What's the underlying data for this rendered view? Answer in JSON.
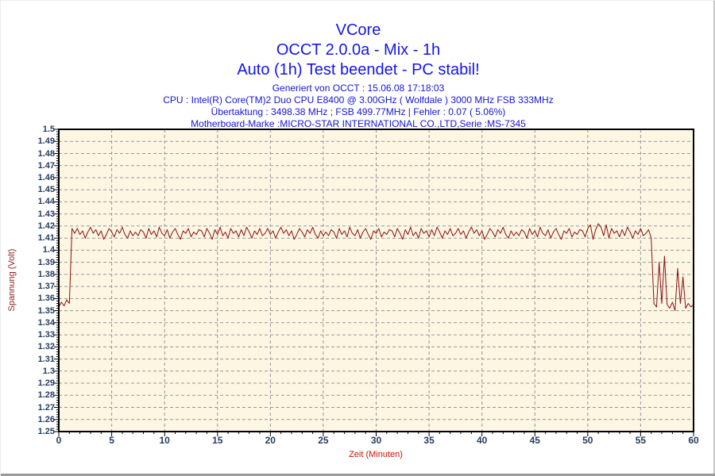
{
  "chart_data": {
    "type": "line",
    "title": "VCore",
    "subtitle": "OCCT 2.0.0a - Mix - 1h",
    "status": "Auto (1h) Test beendet - PC stabil!",
    "info_lines": [
      "Generiert von OCCT : 15.06.08 17:18:03",
      "CPU : Intel(R) Core(TM)2 Duo CPU E8400 @ 3.00GHz ( Wolfdale ) 3000 MHz FSB 333MHz",
      "Übertaktung : 3498.38 MHz ; FSB 499.77MHz | Fehler : 0.07 ( 5.06%)",
      "Motherboard-Marke :MICRO-STAR INTERNATIONAL CO.,LTD,Serie :MS-7345"
    ],
    "xlabel": "Zeit (Minuten)",
    "ylabel": "Spannung (Volt)",
    "xlim": [
      0,
      60
    ],
    "ylim": [
      1.25,
      1.5
    ],
    "x_major_ticks": [
      0,
      5,
      10,
      15,
      20,
      25,
      30,
      35,
      40,
      45,
      50,
      55,
      60
    ],
    "x_tick_labels": [
      "0",
      "5",
      "10",
      "15",
      "20",
      "25",
      "30",
      "35",
      "40",
      "45",
      "50",
      "55",
      "60"
    ],
    "x_minor_step": 1,
    "y_major_step": 0.01,
    "y_minor_step": 0.002,
    "y_tick_labels": [
      "1.5",
      "1.49",
      "1.48",
      "1.47",
      "1.46",
      "1.45",
      "1.44",
      "1.43",
      "1.42",
      "1.41",
      "1.4",
      "1.39",
      "1.38",
      "1.37",
      "1.36",
      "1.35",
      "1.34",
      "1.33",
      "1.32",
      "1.31",
      "1.3",
      "1.29",
      "1.28",
      "1.27",
      "1.26",
      "1.25"
    ],
    "grid": "dashed",
    "legend": "none",
    "colors": {
      "title": "#1414f0",
      "info": "#1414d8",
      "line": "#8b1111",
      "plot_bg": "#fdf6e3",
      "grid": "#969696",
      "axis": "#000000",
      "tick_labels": "#253c60",
      "x_axis_title": "#cc1100",
      "y_axis_title": "#8b2020"
    },
    "points": {
      "t0": 0,
      "dt": 0.25,
      "unit": "V",
      "values": [
        1.353,
        1.357,
        1.354,
        1.359,
        1.356,
        1.418,
        1.414,
        1.418,
        1.413,
        1.416,
        1.41,
        1.415,
        1.419,
        1.414,
        1.417,
        1.412,
        1.416,
        1.409,
        1.413,
        1.418,
        1.415,
        1.411,
        1.417,
        1.414,
        1.419,
        1.413,
        1.41,
        1.416,
        1.412,
        1.415,
        1.412,
        1.417,
        1.415,
        1.41,
        1.418,
        1.413,
        1.416,
        1.411,
        1.419,
        1.414,
        1.412,
        1.417,
        1.41,
        1.415,
        1.418,
        1.413,
        1.409,
        1.416,
        1.414,
        1.418,
        1.411,
        1.415,
        1.413,
        1.417,
        1.416,
        1.411,
        1.418,
        1.414,
        1.409,
        1.417,
        1.413,
        1.419,
        1.412,
        1.415,
        1.41,
        1.418,
        1.414,
        1.416,
        1.411,
        1.417,
        1.412,
        1.419,
        1.415,
        1.41,
        1.416,
        1.413,
        1.418,
        1.412,
        1.414,
        1.418,
        1.413,
        1.416,
        1.41,
        1.415,
        1.419,
        1.414,
        1.417,
        1.412,
        1.416,
        1.409,
        1.413,
        1.418,
        1.415,
        1.411,
        1.417,
        1.414,
        1.419,
        1.413,
        1.41,
        1.416,
        1.412,
        1.415,
        1.412,
        1.417,
        1.415,
        1.41,
        1.418,
        1.413,
        1.416,
        1.411,
        1.419,
        1.414,
        1.412,
        1.417,
        1.41,
        1.415,
        1.418,
        1.413,
        1.409,
        1.416,
        1.414,
        1.418,
        1.411,
        1.415,
        1.413,
        1.417,
        1.416,
        1.411,
        1.418,
        1.414,
        1.409,
        1.417,
        1.413,
        1.419,
        1.412,
        1.415,
        1.41,
        1.418,
        1.414,
        1.416,
        1.411,
        1.417,
        1.412,
        1.419,
        1.415,
        1.41,
        1.416,
        1.413,
        1.418,
        1.412,
        1.414,
        1.418,
        1.413,
        1.416,
        1.41,
        1.415,
        1.419,
        1.414,
        1.417,
        1.412,
        1.416,
        1.409,
        1.413,
        1.418,
        1.415,
        1.411,
        1.417,
        1.414,
        1.419,
        1.413,
        1.41,
        1.416,
        1.412,
        1.415,
        1.412,
        1.417,
        1.415,
        1.41,
        1.418,
        1.413,
        1.416,
        1.411,
        1.419,
        1.414,
        1.412,
        1.417,
        1.41,
        1.415,
        1.418,
        1.413,
        1.409,
        1.416,
        1.414,
        1.418,
        1.411,
        1.415,
        1.413,
        1.417,
        1.416,
        1.411,
        1.418,
        1.421,
        1.409,
        1.417,
        1.422,
        1.419,
        1.412,
        1.421,
        1.41,
        1.418,
        1.414,
        1.416,
        1.411,
        1.417,
        1.412,
        1.419,
        1.415,
        1.41,
        1.416,
        1.413,
        1.418,
        1.412,
        1.414,
        1.417,
        1.41,
        1.356,
        1.353,
        1.39,
        1.356,
        1.395,
        1.355,
        1.352,
        1.357,
        1.35,
        1.385,
        1.356,
        1.378,
        1.352,
        1.356,
        1.353,
        1.355
      ]
    }
  }
}
